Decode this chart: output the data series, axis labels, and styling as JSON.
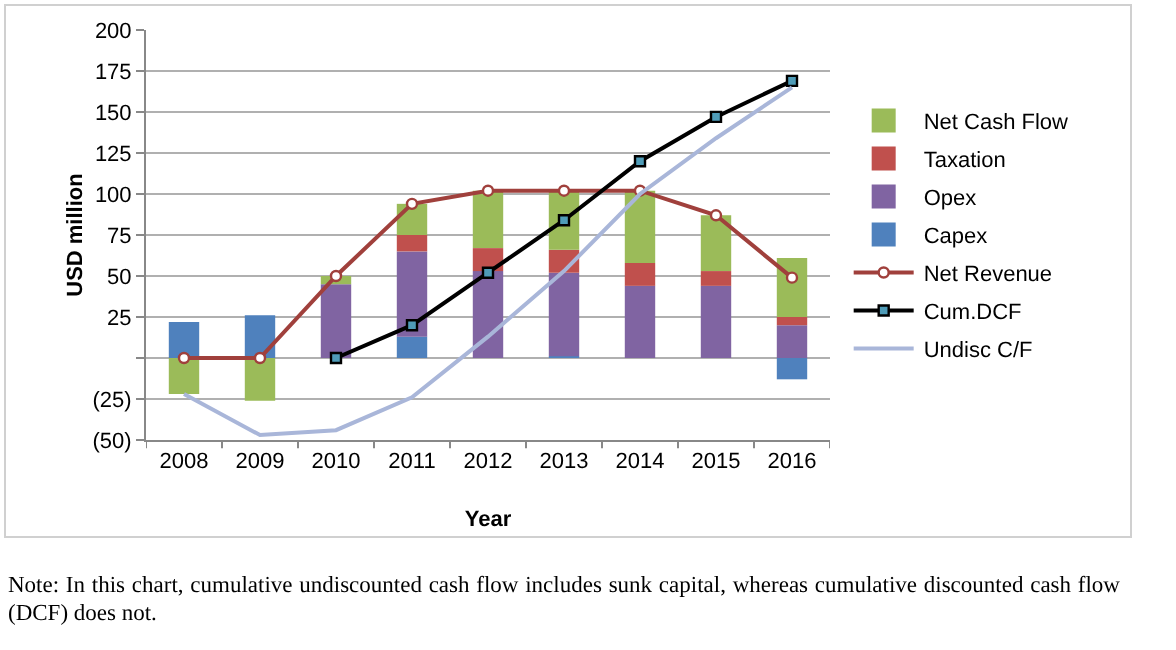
{
  "chart_data": {
    "type": "bar",
    "stacked": true,
    "xlabel": "Year",
    "ylabel": "USD million",
    "categories": [
      "2008",
      "2009",
      "2010",
      "2011",
      "2012",
      "2013",
      "2014",
      "2015",
      "2016"
    ],
    "series": [
      {
        "name": "Capex",
        "color": "#4f81bd",
        "values": [
          22,
          26,
          0,
          13,
          0,
          1,
          0,
          0,
          -13
        ]
      },
      {
        "name": "Opex",
        "color": "#8064a2",
        "values": [
          0,
          0,
          45,
          52,
          53,
          51,
          44,
          44,
          20
        ]
      },
      {
        "name": "Taxation",
        "color": "#c0504d",
        "values": [
          0,
          0,
          0,
          10,
          14,
          14,
          14,
          9,
          5
        ]
      },
      {
        "name": "Net Cash Flow",
        "color": "#9bbb59",
        "values": [
          -22,
          -26,
          5,
          19,
          35,
          37,
          44,
          34,
          36
        ]
      },
      {
        "name": "Net Revenue",
        "type": "line",
        "marker": "circle",
        "color": "#a0403c",
        "values": [
          0,
          0,
          50,
          94,
          102,
          102,
          102,
          87,
          49
        ]
      },
      {
        "name": "Cum.DCF",
        "type": "line",
        "marker": "square",
        "color": "#000000",
        "values": [
          null,
          null,
          0,
          20,
          52,
          84,
          120,
          147,
          169
        ]
      },
      {
        "name": "Undisc C/F",
        "type": "line",
        "marker": "none",
        "color": "#a9b6d9",
        "values": [
          -22,
          -47,
          -44,
          -24,
          13,
          53,
          100,
          134,
          165
        ]
      }
    ],
    "ylim": [
      -50,
      200
    ],
    "yticks": [
      {
        "value": -50,
        "label": "(50)"
      },
      {
        "value": -25,
        "label": "(25)"
      },
      {
        "value": 0,
        "label": null
      },
      25,
      50,
      75,
      100,
      125,
      150,
      175,
      200
    ],
    "grid": "y",
    "legend": "right",
    "line_style": "solid",
    "annotations": [
      "Note: In this chart, cumulative undiscounted cash flow includes sunk capital, whereas cumulative discounted cash flow (DCF) does not."
    ]
  }
}
